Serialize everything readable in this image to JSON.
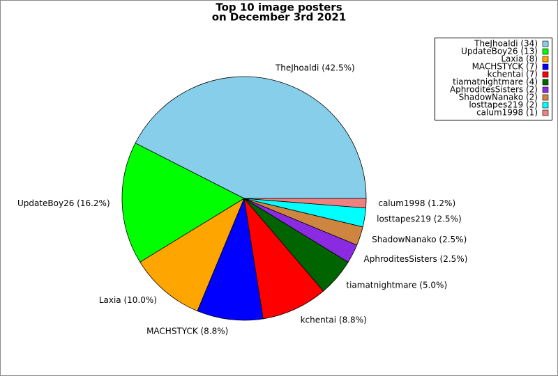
{
  "chart_data": {
    "type": "pie",
    "title": [
      "Top 10 image posters",
      "on December 3rd 2021"
    ],
    "legend_labels": [
      "TheJhoaldi (34)",
      "UpdateBoy26 (13)",
      "Laxia (8)",
      "MACHSTYCK (7)",
      "kchentai (7)",
      "tiamatnightmare (4)",
      "AphroditesSisters (2)",
      "ShadowNanako (2)",
      "losttapes219 (2)",
      "calum1998 (1)"
    ],
    "slice_labels": [
      "TheJhoaldi (42.5%)",
      "UpdateBoy26 (16.2%)",
      "Laxia (10.0%)",
      "MACHSTYCK (8.8%)",
      "kchentai (8.8%)",
      "tiamatnightmare (5.0%)",
      "AphroditesSisters (2.5%)",
      "ShadowNanako (2.5%)",
      "losttapes219 (2.5%)",
      "calum1998 (1.2%)"
    ],
    "values": [
      34,
      13,
      8,
      7,
      7,
      4,
      2,
      2,
      2,
      1
    ],
    "colors": [
      "#87ceeb",
      "#00ff00",
      "#ffa500",
      "#0000ff",
      "#ff0000",
      "#006400",
      "#8a2be2",
      "#cd853f",
      "#00ffff",
      "#f08080"
    ],
    "legend": "upper right"
  }
}
